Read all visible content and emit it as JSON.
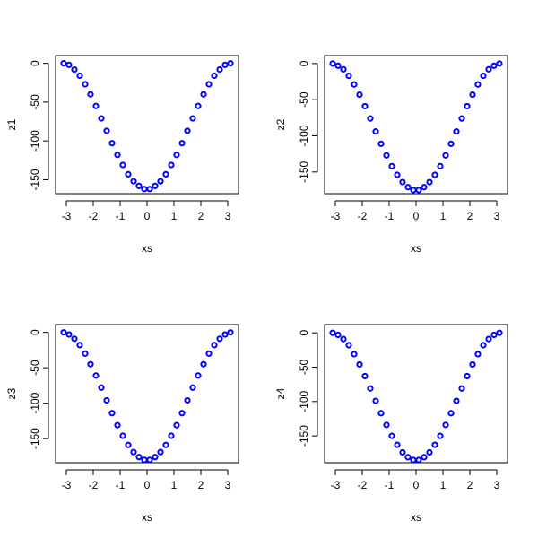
{
  "chart_data": [
    {
      "type": "scatter",
      "xlabel": "xs",
      "ylabel": "z1",
      "color": "#0000ff",
      "x": [
        -3.1,
        -2.9,
        -2.7,
        -2.5,
        -2.3,
        -2.1,
        -1.9,
        -1.7,
        -1.5,
        -1.3,
        -1.1,
        -0.9,
        -0.7,
        -0.5,
        -0.3,
        -0.1,
        0.1,
        0.3,
        0.5,
        0.7,
        0.9,
        1.1,
        1.3,
        1.5,
        1.7,
        1.9,
        2.1,
        2.3,
        2.5,
        2.7,
        2.9,
        3.1
      ],
      "values": [
        0,
        -2,
        -8,
        -16,
        -27,
        -40,
        -55,
        -71,
        -87,
        -103,
        -118,
        -131,
        -143,
        -152,
        -158,
        -162,
        -162,
        -158,
        -152,
        -143,
        -131,
        -118,
        -103,
        -87,
        -71,
        -55,
        -40,
        -27,
        -16,
        -8,
        -2,
        0
      ],
      "xlim": [
        -3.4,
        3.4
      ],
      "ylim": [
        -168,
        10
      ],
      "xticks": [
        -3,
        -2,
        -1,
        0,
        1,
        2,
        3
      ],
      "yticks": [
        -150,
        -100,
        -50,
        0
      ]
    },
    {
      "type": "scatter",
      "xlabel": "xs",
      "ylabel": "z2",
      "color": "#0000ff",
      "x": [
        -3.1,
        -2.9,
        -2.7,
        -2.5,
        -2.3,
        -2.1,
        -1.9,
        -1.7,
        -1.5,
        -1.3,
        -1.1,
        -0.9,
        -0.7,
        -0.5,
        -0.3,
        -0.1,
        0.1,
        0.3,
        0.5,
        0.7,
        0.9,
        1.1,
        1.3,
        1.5,
        1.7,
        1.9,
        2.1,
        2.3,
        2.5,
        2.7,
        2.9,
        3.1
      ],
      "values": [
        0,
        -3,
        -8,
        -17,
        -29,
        -43,
        -59,
        -76,
        -94,
        -111,
        -127,
        -142,
        -154,
        -164,
        -171,
        -175,
        -175,
        -171,
        -164,
        -154,
        -142,
        -127,
        -111,
        -94,
        -76,
        -59,
        -43,
        -29,
        -17,
        -8,
        -3,
        0
      ],
      "xlim": [
        -3.4,
        3.4
      ],
      "ylim": [
        -180,
        11
      ],
      "xticks": [
        -3,
        -2,
        -1,
        0,
        1,
        2,
        3
      ],
      "yticks": [
        -150,
        -100,
        -50,
        0
      ]
    },
    {
      "type": "scatter",
      "xlabel": "xs",
      "ylabel": "z3",
      "color": "#0000ff",
      "x": [
        -3.1,
        -2.9,
        -2.7,
        -2.5,
        -2.3,
        -2.1,
        -1.9,
        -1.7,
        -1.5,
        -1.3,
        -1.1,
        -0.9,
        -0.7,
        -0.5,
        -0.3,
        -0.1,
        0.1,
        0.3,
        0.5,
        0.7,
        0.9,
        1.1,
        1.3,
        1.5,
        1.7,
        1.9,
        2.1,
        2.3,
        2.5,
        2.7,
        2.9,
        3.1
      ],
      "values": [
        0,
        -3,
        -9,
        -18,
        -30,
        -45,
        -61,
        -78,
        -96,
        -114,
        -131,
        -146,
        -159,
        -169,
        -176,
        -180,
        -180,
        -176,
        -169,
        -159,
        -146,
        -131,
        -114,
        -96,
        -78,
        -61,
        -45,
        -30,
        -18,
        -9,
        -3,
        0
      ],
      "xlim": [
        -3.4,
        3.4
      ],
      "ylim": [
        -184,
        11
      ],
      "xticks": [
        -3,
        -2,
        -1,
        0,
        1,
        2,
        3
      ],
      "yticks": [
        -150,
        -100,
        -50,
        0
      ]
    },
    {
      "type": "scatter",
      "xlabel": "xs",
      "ylabel": "z4",
      "color": "#0000ff",
      "x": [
        -3.1,
        -2.9,
        -2.7,
        -2.5,
        -2.3,
        -2.1,
        -1.9,
        -1.7,
        -1.5,
        -1.3,
        -1.1,
        -0.9,
        -0.7,
        -0.5,
        -0.3,
        -0.1,
        0.1,
        0.3,
        0.5,
        0.7,
        0.9,
        1.1,
        1.3,
        1.5,
        1.7,
        1.9,
        2.1,
        2.3,
        2.5,
        2.7,
        2.9,
        3.1
      ],
      "values": [
        0,
        -3,
        -9,
        -18,
        -31,
        -46,
        -63,
        -81,
        -99,
        -117,
        -134,
        -150,
        -163,
        -174,
        -181,
        -185,
        -185,
        -181,
        -174,
        -163,
        -150,
        -134,
        -117,
        -99,
        -81,
        -63,
        -46,
        -31,
        -18,
        -9,
        -3,
        0
      ],
      "xlim": [
        -3.4,
        3.4
      ],
      "ylim": [
        -189,
        12
      ],
      "xticks": [
        -3,
        -2,
        -1,
        0,
        1,
        2,
        3
      ],
      "yticks": [
        -150,
        -100,
        -50,
        0
      ]
    }
  ]
}
